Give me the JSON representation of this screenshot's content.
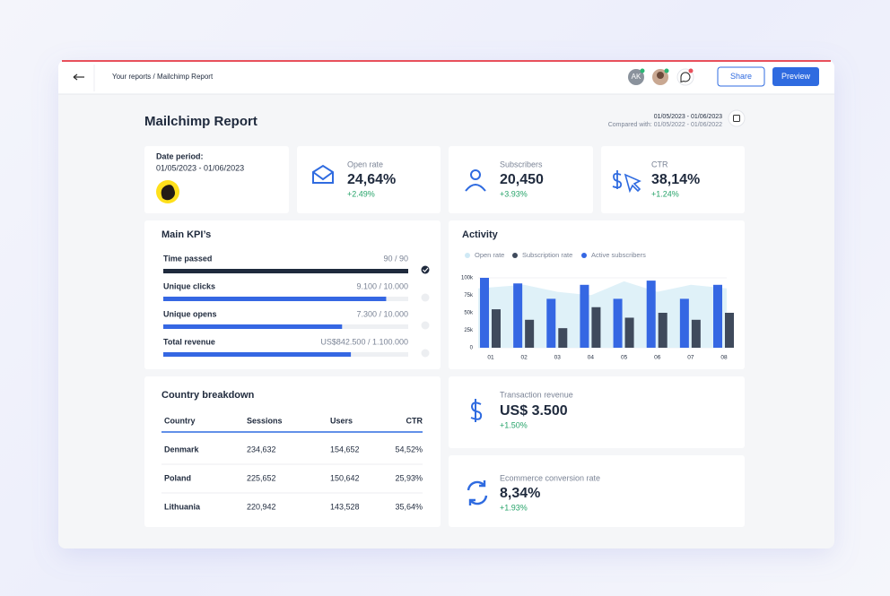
{
  "topbar": {
    "breadcrumb": "Your reports / Mailchimp Report",
    "avatar_initials": "AK",
    "share": "Share",
    "preview": "Preview"
  },
  "header": {
    "title": "Mailchimp Report",
    "date_range": "01/05/2023 - 01/06/2023",
    "compared": "Compared with: 01/05/2022 - 01/06/2022"
  },
  "date_card": {
    "label": "Date period:",
    "range": "01/05/2023 - 01/06/2023"
  },
  "stats": [
    {
      "label": "Open rate",
      "value": "24,64%",
      "change": "+2.49%"
    },
    {
      "label": "Subscribers",
      "value": "20,450",
      "change": "+3.93%"
    },
    {
      "label": "CTR",
      "value": "38,14%",
      "change": "+1.24%"
    }
  ],
  "kpi": {
    "title": "Main KPI’s",
    "items": [
      {
        "name": "Time passed",
        "label": "90 / 90",
        "value": 90,
        "max": 90
      },
      {
        "name": "Unique clicks",
        "label": "9.100 / 10.000",
        "value": 9100,
        "max": 10000
      },
      {
        "name": "Unique opens",
        "label": "7.300 / 10.000",
        "value": 7300,
        "max": 10000
      },
      {
        "name": "Total revenue",
        "label": "US$842.500 / 1.100.000",
        "value": 842500,
        "max": 1100000
      }
    ]
  },
  "activity": {
    "type": "bar",
    "title": "Activity",
    "categories": [
      "01",
      "02",
      "03",
      "04",
      "05",
      "06",
      "07",
      "08"
    ],
    "ylim": [
      0,
      100000
    ],
    "yticks": [
      0,
      {
        "value": 25000,
        "label": "25k"
      },
      {
        "value": 50000,
        "label": "50k"
      },
      {
        "value": 75000,
        "label": "75k"
      },
      {
        "value": 100000,
        "label": "100k"
      }
    ],
    "series": [
      {
        "name": "Open rate",
        "kind": "area",
        "color": "#dff1f8",
        "values": [
          85000,
          90000,
          80000,
          75000,
          95000,
          80000,
          90000,
          85000
        ]
      },
      {
        "name": "Subscription rate",
        "kind": "bar",
        "color": "#3f4a5c",
        "values": [
          55000,
          40000,
          28000,
          58000,
          43000,
          50000,
          40000,
          50000
        ]
      },
      {
        "name": "Active subscribers",
        "kind": "bar",
        "color": "#3567e3",
        "values": [
          100000,
          92000,
          70000,
          90000,
          70000,
          96000,
          70000,
          90000
        ]
      }
    ]
  },
  "country": {
    "title": "Country breakdown",
    "columns": [
      "Country",
      "Sessions",
      "Users",
      "CTR"
    ],
    "rows": [
      [
        "Denmark",
        "234,632",
        "154,652",
        "54,52%"
      ],
      [
        "Poland",
        "225,652",
        "150,642",
        "25,93%"
      ],
      [
        "Lithuania",
        "220,942",
        "143,528",
        "35,64%"
      ]
    ]
  },
  "transaction": {
    "label": "Transaction revenue",
    "value": "US$ 3.500",
    "change": "+1.50%"
  },
  "conversion": {
    "label": "Ecommerce conversion rate",
    "value": "8,34%",
    "change": "+1.93%"
  }
}
